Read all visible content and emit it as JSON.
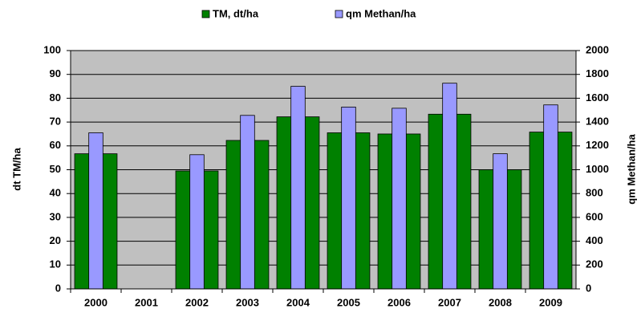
{
  "chart_data": {
    "type": "bar",
    "categories": [
      "2000",
      "2001",
      "2002",
      "2003",
      "2004",
      "2005",
      "2006",
      "2007",
      "2008",
      "2009"
    ],
    "series": [
      {
        "name": "TM, dt/ha",
        "color": "#008000",
        "values": [
          56.7,
          null,
          49.5,
          62.3,
          72.2,
          65.5,
          65,
          73.3,
          50,
          65.8
        ]
      },
      {
        "name": "qm Methan/ha",
        "color": "#9999ff",
        "axis": "y2",
        "values": [
          1310,
          null,
          1126,
          1456,
          1700,
          1526,
          1516,
          1726,
          1134,
          1544
        ]
      }
    ],
    "ylabel": "dt TM/ha",
    "y2label": "qm Methan/ha",
    "ylim": [
      0,
      100
    ],
    "yticks": [
      0,
      10,
      20,
      30,
      40,
      50,
      60,
      70,
      80,
      90,
      100
    ],
    "y2lim": [
      0,
      2000
    ],
    "y2ticks": [
      0,
      200,
      400,
      600,
      800,
      1000,
      1200,
      1400,
      1600,
      1800,
      2000
    ],
    "grid": true,
    "legend": "top"
  }
}
